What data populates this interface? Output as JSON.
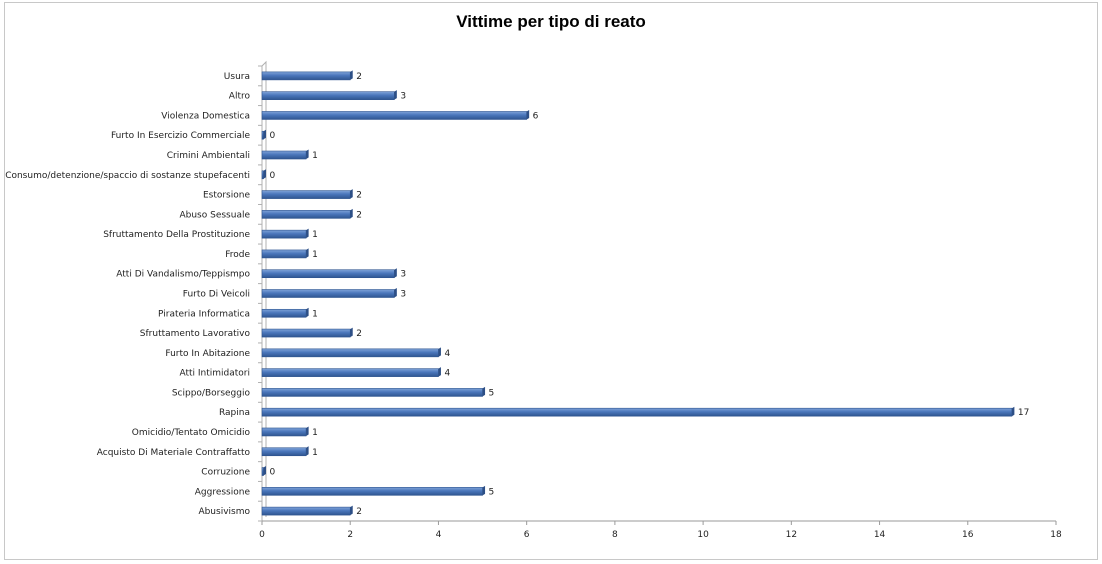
{
  "chart_data": {
    "type": "bar",
    "orientation": "horizontal",
    "title": "Vittime per tipo di reato",
    "xlabel": "",
    "ylabel": "",
    "xlim": [
      0,
      18
    ],
    "xticks": [
      0,
      2,
      4,
      6,
      8,
      10,
      12,
      14,
      16,
      18
    ],
    "grid": false,
    "legend": "none",
    "bar_color": "#4a76bb",
    "categories": [
      "Usura",
      "Altro",
      "Violenza Domestica",
      "Furto In Esercizio Commerciale",
      "Crimini Ambientali",
      "Consumo/detenzione/spaccio di sostanze stupefacenti",
      "Estorsione",
      "Abuso Sessuale",
      "Sfruttamento Della Prostituzione",
      "Frode",
      "Atti Di Vandalismo/Teppismpo",
      "Furto Di Veicoli",
      "Pirateria Informatica",
      "Sfruttamento Lavorativo",
      "Furto In Abitazione",
      "Atti Intimidatori",
      "Scippo/Borseggio",
      "Rapina",
      "Omicidio/Tentato Omicidio",
      "Acquisto Di Materiale Contraffatto",
      "Corruzione",
      "Aggressione",
      "Abusivismo"
    ],
    "values": [
      2,
      3,
      6,
      0,
      1,
      0,
      2,
      2,
      1,
      1,
      3,
      3,
      1,
      2,
      4,
      4,
      5,
      17,
      1,
      1,
      0,
      5,
      2
    ]
  }
}
